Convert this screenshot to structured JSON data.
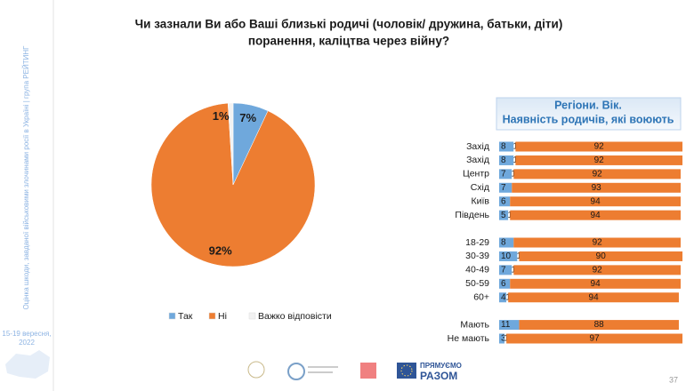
{
  "sidebar": {
    "text": "Оцінка шкоди, завданої військовими злочинами росії в Україні | група РЕЙТИНГ",
    "date": [
      "15-19 вересня,",
      "2022"
    ]
  },
  "title": [
    "Чи зазнали Ви або Ваші близькі родичі (чоловік/ дружина, батьки, діти)",
    "поранення, каліцтва через війну?"
  ],
  "chart_data": [
    {
      "type": "pie",
      "categories": [
        "Так",
        "Ні",
        "Важко відповісти"
      ],
      "values": [
        7,
        92,
        1
      ],
      "value_labels": [
        "7%",
        "92%",
        "1%"
      ],
      "colors": [
        "#6fa8dc",
        "#ed7d31",
        "#f2f2f2"
      ],
      "legend": "bottom"
    },
    {
      "type": "bar",
      "orientation": "horizontal",
      "stacked": true,
      "title": [
        "Регіони. Вік.",
        "Наявність родичів, які воюють"
      ],
      "categories": [
        "Захід",
        "Захід",
        "Центр",
        "Схід",
        "Київ",
        "Південь",
        null,
        "18-29",
        "30-39",
        "40-49",
        "50-59",
        "60+",
        null,
        "Мають",
        "Не мають"
      ],
      "xlim": [
        0,
        100
      ],
      "series": [
        {
          "color": "#6fa8dc",
          "values": [
            8,
            8,
            7,
            7,
            6,
            5,
            null,
            8,
            10,
            7,
            6,
            4,
            null,
            11,
            3
          ]
        },
        {
          "color": "#ffffff",
          "values": [
            1,
            1,
            1,
            null,
            null,
            1,
            null,
            null,
            1,
            1,
            null,
            1,
            null,
            null,
            1
          ]
        },
        {
          "color": "#ed7d31",
          "values": [
            92,
            92,
            92,
            93,
            94,
            94,
            null,
            92,
            90,
            92,
            94,
            94,
            null,
            88,
            97
          ]
        }
      ]
    }
  ],
  "footer": {
    "logo_text": [
      "ПРЯМУЄМО",
      "РАЗОМ"
    ],
    "page_number": "37"
  }
}
